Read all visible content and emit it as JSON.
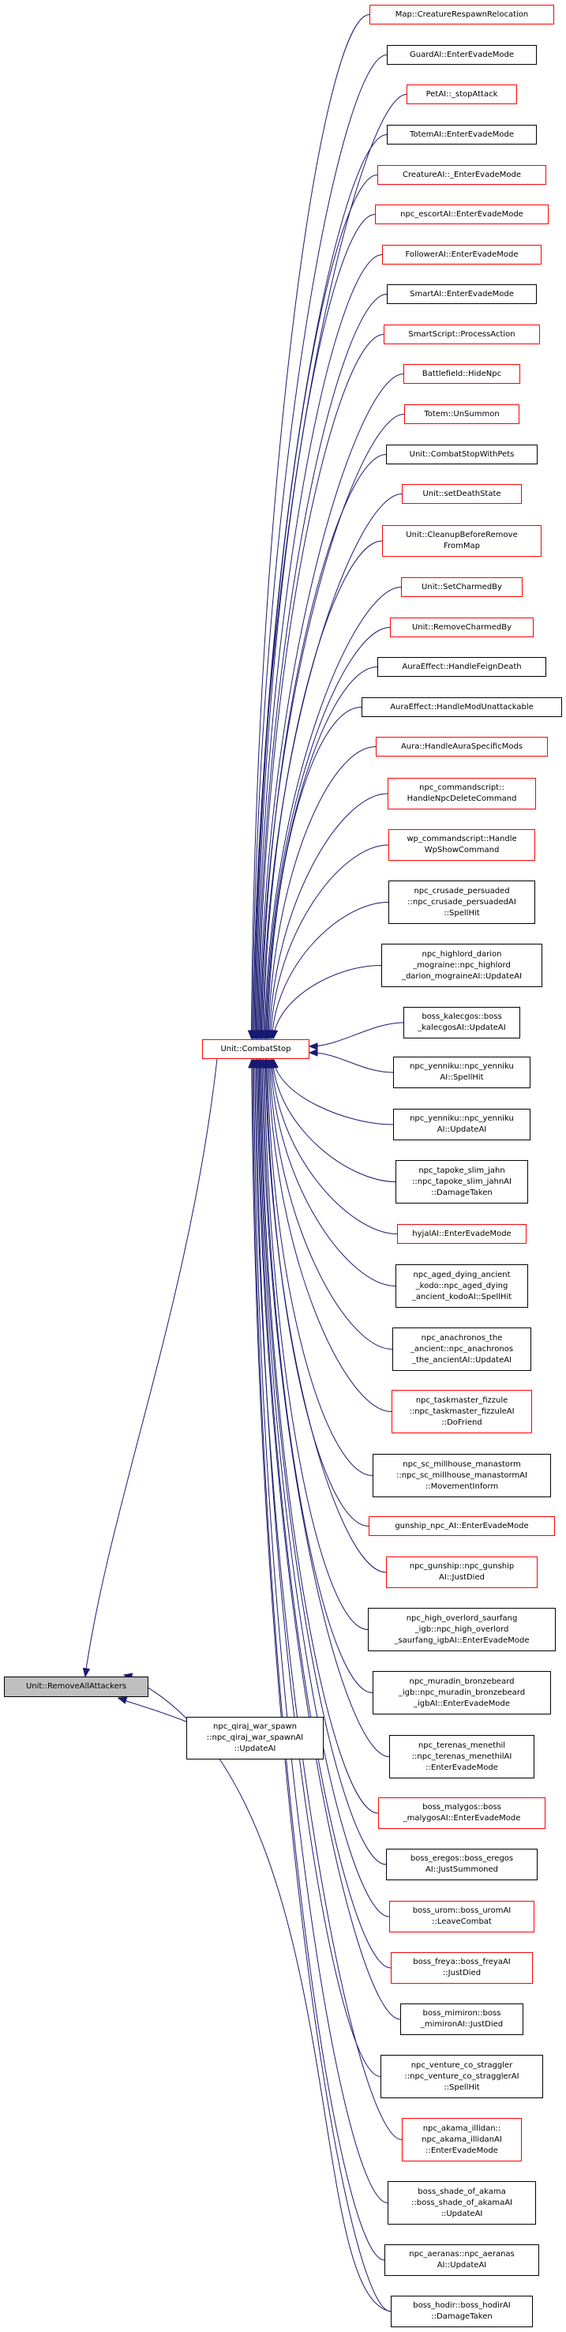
{
  "edge_color": "#191970",
  "border_colors": {
    "red": "#ff0000",
    "black": "#000000"
  },
  "root": {
    "lines": [
      "Unit::RemoveAllAttackers"
    ],
    "border": "black",
    "fill": "#bfbfbf"
  },
  "combat_stop": {
    "lines": [
      "Unit::CombatStop"
    ],
    "border": "red"
  },
  "qiraj": {
    "lines": [
      "npc_qiraj_war_spawn",
      "::npc_qiraj_war_spawnAI",
      "::UpdateAI"
    ],
    "border": "black"
  },
  "callers": [
    {
      "lines": [
        "Map::CreatureRespawnRelocation"
      ],
      "border": "red"
    },
    {
      "lines": [
        "GuardAI::EnterEvadeMode"
      ],
      "border": "black"
    },
    {
      "lines": [
        "PetAI::_stopAttack"
      ],
      "border": "red"
    },
    {
      "lines": [
        "TotemAI::EnterEvadeMode"
      ],
      "border": "black"
    },
    {
      "lines": [
        "CreatureAI::_EnterEvadeMode"
      ],
      "border": "red"
    },
    {
      "lines": [
        "npc_escortAI::EnterEvadeMode"
      ],
      "border": "red"
    },
    {
      "lines": [
        "FollowerAI::EnterEvadeMode"
      ],
      "border": "red"
    },
    {
      "lines": [
        "SmartAI::EnterEvadeMode"
      ],
      "border": "black"
    },
    {
      "lines": [
        "SmartScript::ProcessAction"
      ],
      "border": "red"
    },
    {
      "lines": [
        "Battlefield::HideNpc"
      ],
      "border": "red"
    },
    {
      "lines": [
        "Totem::UnSummon"
      ],
      "border": "red"
    },
    {
      "lines": [
        "Unit::CombatStopWithPets"
      ],
      "border": "black"
    },
    {
      "lines": [
        "Unit::setDeathState"
      ],
      "border": "red"
    },
    {
      "lines": [
        "Unit::CleanupBeforeRemove",
        "FromMap"
      ],
      "border": "red"
    },
    {
      "lines": [
        "Unit::SetCharmedBy"
      ],
      "border": "red"
    },
    {
      "lines": [
        "Unit::RemoveCharmedBy"
      ],
      "border": "red"
    },
    {
      "lines": [
        "AuraEffect::HandleFeignDeath"
      ],
      "border": "black"
    },
    {
      "lines": [
        "AuraEffect::HandleModUnattackable"
      ],
      "border": "black"
    },
    {
      "lines": [
        "Aura::HandleAuraSpecificMods"
      ],
      "border": "red"
    },
    {
      "lines": [
        "npc_commandscript::",
        "HandleNpcDeleteCommand"
      ],
      "border": "red"
    },
    {
      "lines": [
        "wp_commandscript::Handle",
        "WpShowCommand"
      ],
      "border": "red"
    },
    {
      "lines": [
        "npc_crusade_persuaded",
        "::npc_crusade_persuadedAI",
        "::SpellHit"
      ],
      "border": "black"
    },
    {
      "lines": [
        "npc_highlord_darion",
        "_mograine::npc_highlord",
        "_darion_mograineAI::UpdateAI"
      ],
      "border": "black"
    },
    {
      "lines": [
        "boss_kalecgos::boss",
        "_kalecgosAI::UpdateAI"
      ],
      "border": "black"
    },
    {
      "lines": [
        "npc_yenniku::npc_yenniku",
        "AI::SpellHit"
      ],
      "border": "black"
    },
    {
      "lines": [
        "npc_yenniku::npc_yenniku",
        "AI::UpdateAI"
      ],
      "border": "black"
    },
    {
      "lines": [
        "npc_tapoke_slim_jahn",
        "::npc_tapoke_slim_jahnAI",
        "::DamageTaken"
      ],
      "border": "black"
    },
    {
      "lines": [
        "hyjalAI::EnterEvadeMode"
      ],
      "border": "red"
    },
    {
      "lines": [
        "npc_aged_dying_ancient",
        "_kodo::npc_aged_dying",
        "_ancient_kodoAI::SpellHit"
      ],
      "border": "black"
    },
    {
      "lines": [
        "npc_anachronos_the",
        "_ancient::npc_anachronos",
        "_the_ancientAI::UpdateAI"
      ],
      "border": "black"
    },
    {
      "lines": [
        "npc_taskmaster_fizzule",
        "::npc_taskmaster_fizzuleAI",
        "::DoFriend"
      ],
      "border": "red"
    },
    {
      "lines": [
        "npc_sc_millhouse_manastorm",
        "::npc_sc_millhouse_manastormAI",
        "::MovementInform"
      ],
      "border": "black"
    },
    {
      "lines": [
        "gunship_npc_AI::EnterEvadeMode"
      ],
      "border": "red"
    },
    {
      "lines": [
        "npc_gunship::npc_gunship",
        "AI::JustDied"
      ],
      "border": "red"
    },
    {
      "lines": [
        "npc_high_overlord_saurfang",
        "_igb::npc_high_overlord",
        "_saurfang_igbAI::EnterEvadeMode"
      ],
      "border": "black"
    },
    {
      "lines": [
        "npc_muradin_bronzebeard",
        "_igb::npc_muradin_bronzebeard",
        "_igbAI::EnterEvadeMode"
      ],
      "border": "black"
    },
    {
      "lines": [
        "npc_terenas_menethil",
        "::npc_terenas_menethilAI",
        "::EnterEvadeMode"
      ],
      "border": "black"
    },
    {
      "lines": [
        "boss_malygos::boss",
        "_malygosAI::EnterEvadeMode"
      ],
      "border": "red"
    },
    {
      "lines": [
        "boss_eregos::boss_eregos",
        "AI::JustSummoned"
      ],
      "border": "black"
    },
    {
      "lines": [
        "boss_urom::boss_uromAI",
        "::LeaveCombat"
      ],
      "border": "red"
    },
    {
      "lines": [
        "boss_freya::boss_freyaAI",
        "::JustDied"
      ],
      "border": "red"
    },
    {
      "lines": [
        "boss_mimiron::boss",
        "_mimironAI::JustDied"
      ],
      "border": "black"
    },
    {
      "lines": [
        "npc_venture_co_straggler",
        "::npc_venture_co_stragglerAI",
        "::SpellHit"
      ],
      "border": "black"
    },
    {
      "lines": [
        "npc_akama_illidan::",
        "npc_akama_illidanAI",
        "::EnterEvadeMode"
      ],
      "border": "red"
    },
    {
      "lines": [
        "boss_shade_of_akama",
        "::boss_shade_of_akamaAI",
        "::UpdateAI"
      ],
      "border": "black"
    },
    {
      "lines": [
        "npc_aeranas::npc_aeranas",
        "AI::UpdateAI"
      ],
      "border": "black"
    },
    {
      "lines": [
        "boss_hodir::boss_hodirAI",
        "::DamageTaken"
      ],
      "border": "black"
    }
  ]
}
